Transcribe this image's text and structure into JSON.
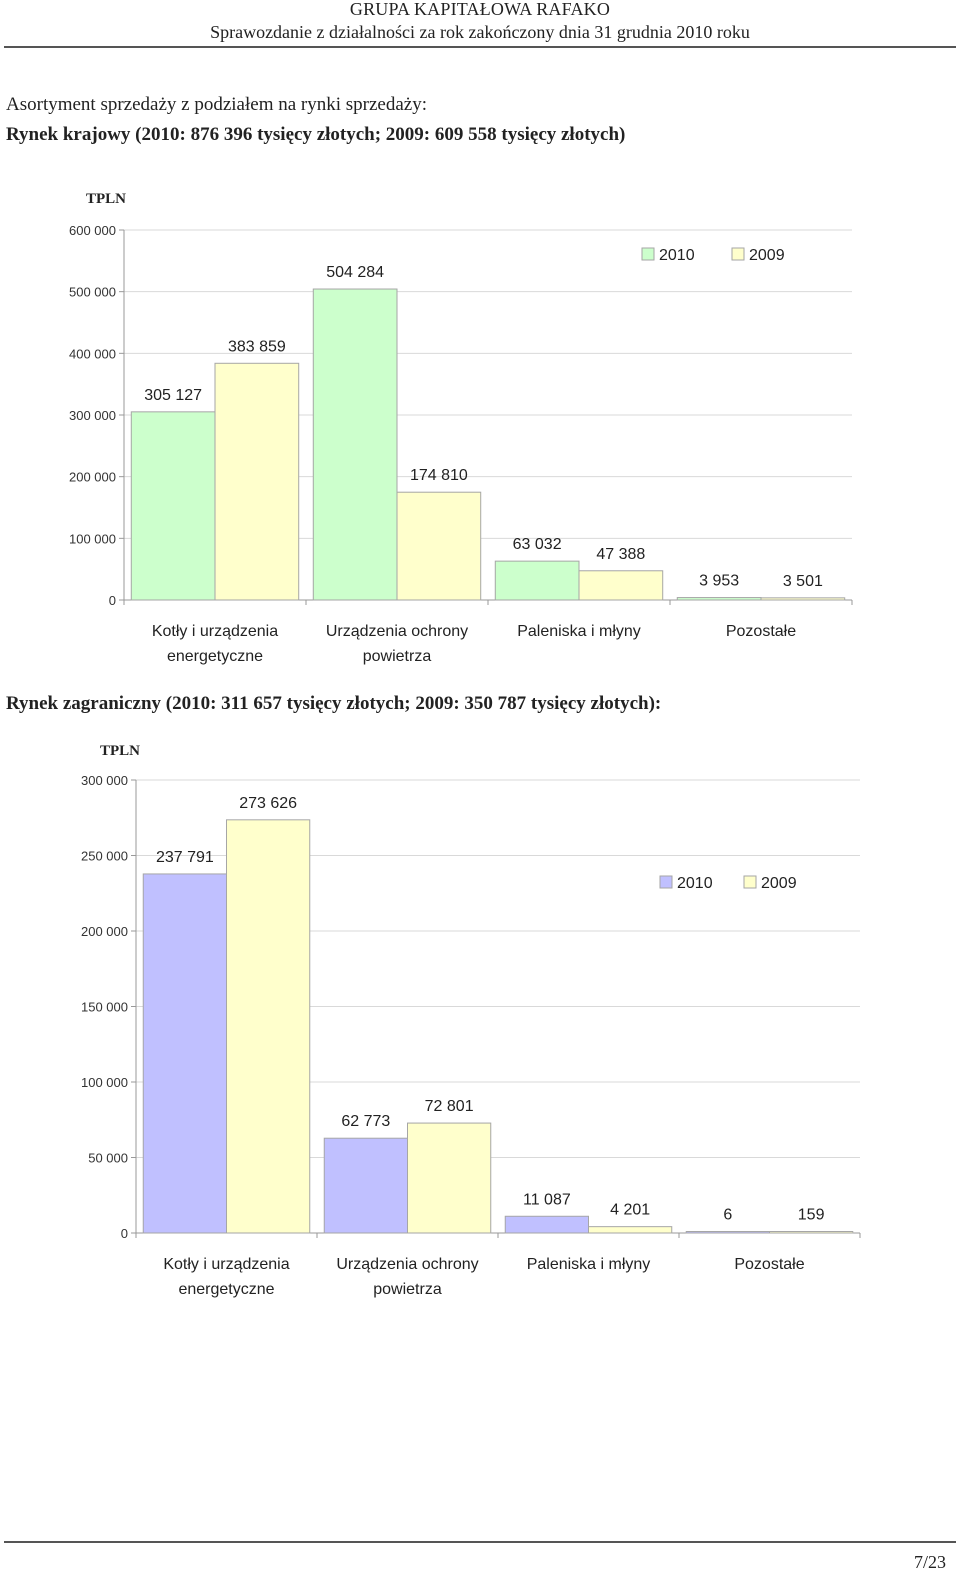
{
  "header": {
    "company": "GRUPA KAPITAŁOWA RAFAKO",
    "subtitle": "Sprawozdanie z działalności za rok zakończony dnia 31 grudnia 2010 roku"
  },
  "section": {
    "title": "Asortyment sprzedaży z podziałem na rynki sprzedaży:",
    "domestic_heading": "Rynek krajowy (2010: 876 396 tysięcy złotych; 2009: 609 558 tysięcy złotych)",
    "foreign_heading": "Rynek zagraniczny (2010: 311 657 tysięcy złotych; 2009: 350 787 tysięcy złotych):"
  },
  "chart_data": [
    {
      "type": "bar",
      "unit_label": "TPLN",
      "categories": [
        [
          "Kotły i urządzenia",
          "energetyczne"
        ],
        [
          "Urządzenia ochrony",
          "powietrza"
        ],
        [
          "Paleniska i młyny"
        ],
        [
          "Pozostałe"
        ]
      ],
      "series": [
        {
          "name": "2010",
          "values": [
            305127,
            504284,
            63032,
            3953
          ],
          "labels": [
            "305 127",
            "504 284",
            "63 032",
            "3 953"
          ],
          "color": "#ccffcc"
        },
        {
          "name": "2009",
          "values": [
            383859,
            174810,
            47388,
            3501
          ],
          "labels": [
            "383 859",
            "174 810",
            "47 388",
            "3 501"
          ],
          "color": "#ffffcc"
        }
      ],
      "ylim": [
        0,
        600000
      ],
      "ticks": [
        0,
        100000,
        200000,
        300000,
        400000,
        500000,
        600000
      ],
      "tick_labels": [
        "0",
        "100 000",
        "200 000",
        "300 000",
        "400 000",
        "500 000",
        "600 000"
      ],
      "grid": true,
      "legend": "top-right"
    },
    {
      "type": "bar",
      "unit_label": "TPLN",
      "categories": [
        [
          "Kotły i urządzenia",
          "energetyczne"
        ],
        [
          "Urządzenia ochrony",
          "powietrza"
        ],
        [
          "Paleniska i młyny"
        ],
        [
          "Pozostałe"
        ]
      ],
      "series": [
        {
          "name": "2010",
          "values": [
            237791,
            62773,
            11087,
            6
          ],
          "labels": [
            "237 791",
            "62 773",
            "11 087",
            "6"
          ],
          "color": "#c0c0ff"
        },
        {
          "name": "2009",
          "values": [
            273626,
            72801,
            4201,
            159
          ],
          "labels": [
            "273 626",
            "72 801",
            "4 201",
            "159"
          ],
          "color": "#ffffcc"
        }
      ],
      "ylim": [
        0,
        300000
      ],
      "ticks": [
        0,
        50000,
        100000,
        150000,
        200000,
        250000,
        300000
      ],
      "tick_labels": [
        "0",
        "50 000",
        "100 000",
        "150 000",
        "200 000",
        "250 000",
        "300 000"
      ],
      "grid": true,
      "legend": "right"
    }
  ],
  "footer": {
    "page": "7/23"
  }
}
